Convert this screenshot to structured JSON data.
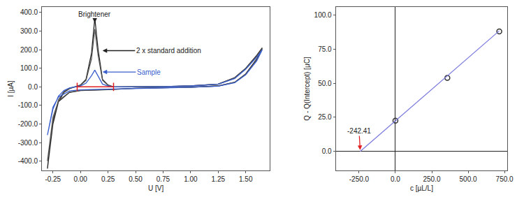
{
  "chart_data": [
    {
      "type": "line",
      "x_label": "U [V]",
      "y_label": "I [µA]",
      "x": [
        -0.3,
        -0.25,
        -0.2,
        -0.15,
        -0.1,
        -0.05,
        0,
        0.05,
        0.1,
        0.13,
        0.16,
        0.2,
        0.25,
        0.3,
        0.4,
        0.5,
        0.75,
        1.0,
        1.25,
        1.4,
        1.5,
        1.6,
        1.65,
        1.6,
        1.5,
        1.4,
        1.25,
        1.0,
        0.75,
        0.5,
        0.25,
        0.1,
        0,
        -0.1,
        -0.2,
        -0.25,
        -0.3
      ],
      "series": [
        {
          "color": "#222222",
          "line_style": "solid",
          "values": [
            -440,
            -200,
            -80,
            -30,
            -10,
            0,
            10,
            40,
            180,
            370,
            200,
            40,
            10,
            0,
            0,
            0,
            2,
            5,
            15,
            50,
            100,
            170,
            210,
            150,
            70,
            25,
            5,
            -2,
            -5,
            -8,
            -15,
            -18,
            -20,
            -30,
            -80,
            -180,
            -440
          ]
        },
        {
          "color": "#555555",
          "line_style": "solid",
          "values": [
            -400,
            -180,
            -70,
            -25,
            -8,
            0,
            8,
            35,
            150,
            310,
            170,
            35,
            8,
            0,
            0,
            0,
            2,
            5,
            15,
            48,
            98,
            165,
            205,
            145,
            68,
            24,
            5,
            -2,
            -5,
            -8,
            -14,
            -17,
            -19,
            -28,
            -75,
            -165,
            -400
          ]
        },
        {
          "color": "#3a5fcd",
          "line_style": "solid",
          "values": [
            -260,
            -120,
            -50,
            -20,
            -6,
            0,
            5,
            20,
            60,
            90,
            60,
            15,
            5,
            0,
            0,
            0,
            2,
            5,
            14,
            45,
            95,
            160,
            200,
            140,
            65,
            22,
            4,
            -2,
            -5,
            -7,
            -12,
            -14,
            -16,
            -22,
            -55,
            -110,
            -260
          ]
        }
      ],
      "xlim": [
        -0.35,
        1.72
      ],
      "xticks": [
        -0.25,
        {
          "value": 0,
          "label": "0.00"
        },
        0.25,
        {
          "value": 0.5,
          "label": "0.50"
        },
        0.75,
        {
          "value": 1,
          "label": "1.00"
        },
        1.25,
        {
          "value": 1.5,
          "label": "1.50"
        }
      ],
      "ylim": [
        -450,
        430
      ],
      "yticks": [
        {
          "value": -400,
          "label": "-400.0"
        },
        {
          "value": -300,
          "label": "-300.0"
        },
        {
          "value": -200,
          "label": "-200.0"
        },
        {
          "value": -100,
          "label": "-100.0"
        },
        {
          "value": 0,
          "label": "0.0"
        },
        {
          "value": 100,
          "label": "100.0"
        },
        {
          "value": 200,
          "label": "200.0"
        },
        {
          "value": 300,
          "label": "300.0"
        },
        {
          "value": 400,
          "label": "400.0"
        }
      ],
      "grid": false,
      "integration_limits": [
        -0.03,
        0.3
      ],
      "annotations": [
        {
          "text": "Brightener",
          "x": 0.13,
          "y": 345,
          "text_x": 0.13,
          "text_y": 392,
          "color": "#222222"
        },
        {
          "text": "2 x standard addition",
          "x": 0.2,
          "y": 195,
          "text_x": 0.8,
          "text_y": 195,
          "color": "#222222"
        },
        {
          "text": "Sample",
          "x": 0.2,
          "y": 80,
          "text_x": 0.62,
          "text_y": 80,
          "color": "#3a5fcd"
        }
      ]
    },
    {
      "type": "scatter",
      "x_label": "c [µL/L]",
      "y_label": "Q - Q(Intercept) [µC]",
      "series": [
        {
          "type": "scatter",
          "marker": "circle-open",
          "color": "#333333",
          "x": [
            0,
            357,
            714
          ],
          "values": [
            22.5,
            54,
            88
          ]
        },
        {
          "type": "line",
          "line_style": "solid",
          "color": "#7b7bdc",
          "x": [
            -242.41,
            714
          ],
          "values": [
            0,
            88.5
          ]
        }
      ],
      "xlim": [
        -410,
        770
      ],
      "xticks": [
        {
          "value": -250,
          "label": "-250.0"
        },
        {
          "value": 0,
          "label": "0.0"
        },
        {
          "value": 250,
          "label": "250.0"
        },
        {
          "value": 500,
          "label": "500.0"
        },
        {
          "value": 750,
          "label": "750.0"
        }
      ],
      "ylim": [
        -14,
        106
      ],
      "yticks": [
        {
          "value": 0,
          "label": "0.0"
        },
        {
          "value": 25,
          "label": "25.0"
        },
        {
          "value": 50,
          "label": "50.0"
        },
        {
          "value": 75,
          "label": "75.0"
        },
        {
          "value": 100,
          "label": "100.0"
        }
      ],
      "grid": false,
      "annotations": [
        {
          "text": "-242.41",
          "x": -242.41,
          "y": 1,
          "text_x": -250,
          "text_y": 15,
          "color": "#222222",
          "arrow_color": "#e02020"
        }
      ]
    }
  ]
}
